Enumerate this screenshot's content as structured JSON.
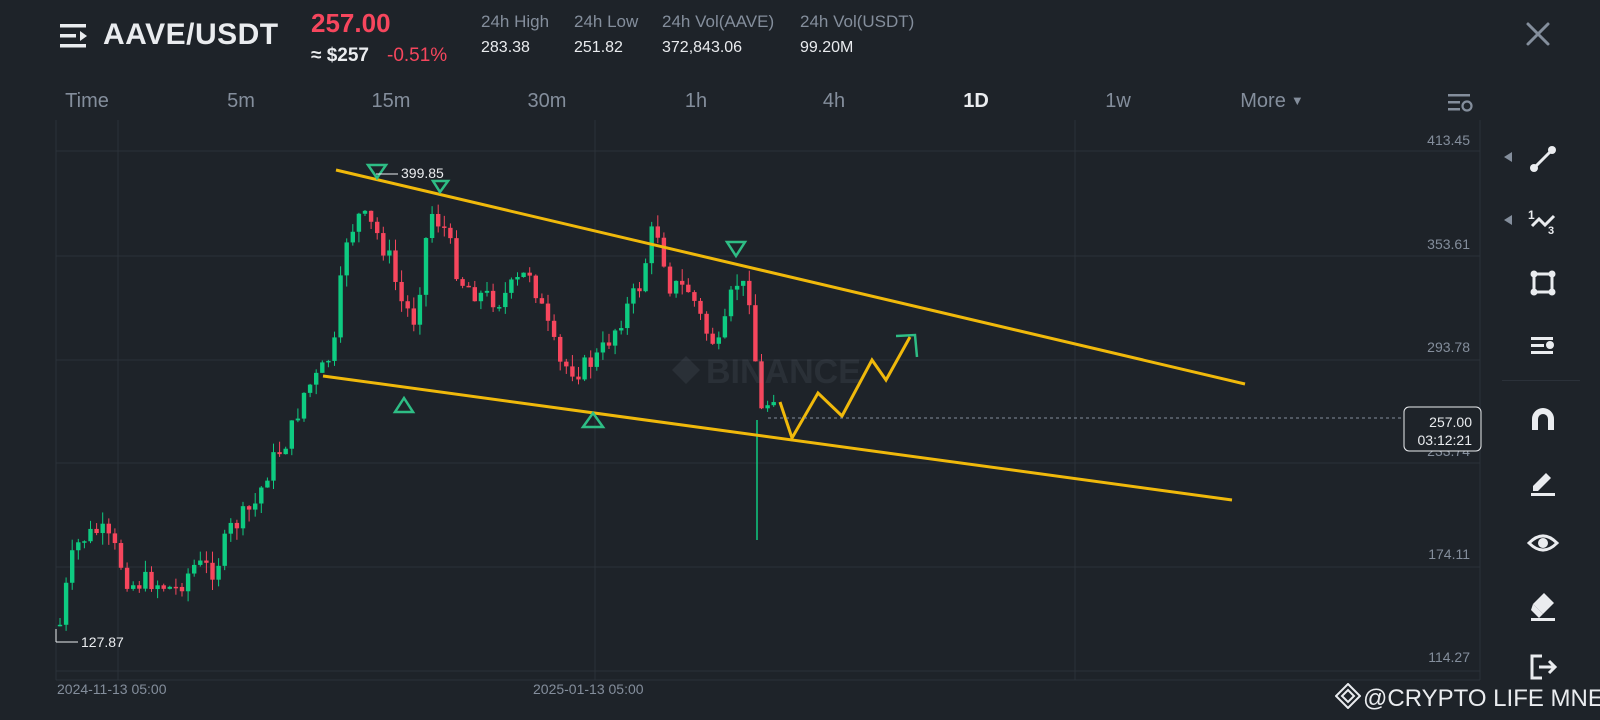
{
  "header": {
    "pair": "AAVE/USDT",
    "price": "257.00",
    "usd_price": "≈ $257",
    "change": "-0.51%",
    "stats": [
      {
        "label": "24h High",
        "value": "283.38"
      },
      {
        "label": "24h Low",
        "value": "251.82"
      },
      {
        "label": "24h Vol(AAVE)",
        "value": "372,843.06"
      },
      {
        "label": "24h Vol(USDT)",
        "value": "99.20M"
      }
    ]
  },
  "tabs": [
    "Time",
    "5m",
    "15m",
    "30m",
    "1h",
    "4h",
    "1D",
    "1w",
    "More"
  ],
  "active_tab": "1D",
  "chart": {
    "price_labels": [
      "413.45",
      "353.61",
      "293.78",
      "233.74",
      "174.11",
      "114.27"
    ],
    "date_labels": [
      "2024-11-13 05:00",
      "2025-01-13 05:00"
    ],
    "high_marker": "399.85",
    "low_marker": "127.87",
    "current_price": "257.00",
    "countdown": "03:12:21",
    "watermark_text": "BINANCE"
  },
  "colors": {
    "background": "#1e2329",
    "up": "#0ecb81",
    "down": "#f6465d",
    "trendline": "#f0b90b",
    "marker": "#2ebd85"
  },
  "tools": [
    "line-tool-icon",
    "fib-tool-icon",
    "shape-tool-icon",
    "indicator-tool-icon",
    "magnet-icon",
    "pencil-icon",
    "eye-icon",
    "eraser-icon",
    "exit-icon"
  ],
  "watermark": "@CRYPTO LIFE MNE"
}
